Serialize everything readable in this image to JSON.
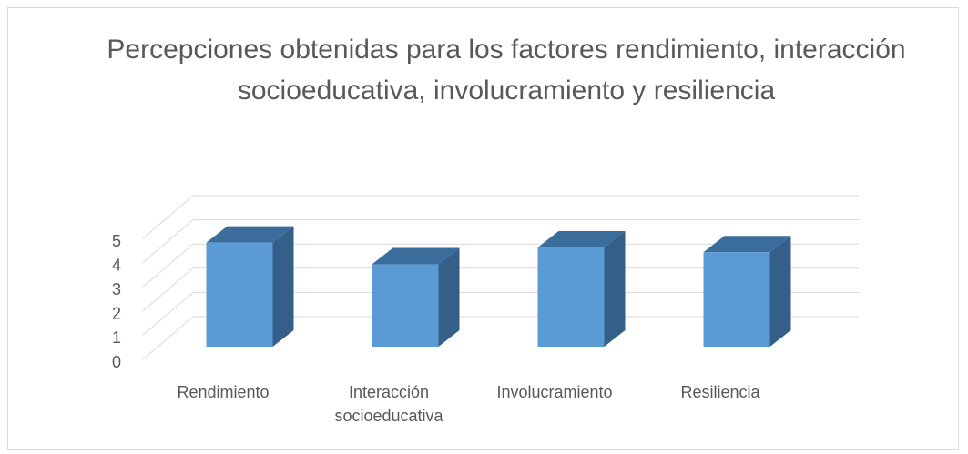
{
  "chart_data": {
    "type": "bar3d",
    "title": "Percepciones obtenidas para los factores rendimiento, interacción socioeducativa, involucramiento y resiliencia",
    "categories": [
      "Rendimiento",
      "Interacción socioeducativa",
      "Involucramiento",
      "Resiliencia"
    ],
    "values": [
      4.3,
      3.4,
      4.1,
      3.9
    ],
    "color": "#5b9bd5",
    "ylim": [
      0,
      5
    ],
    "yticks": [
      0,
      1,
      2,
      3,
      4,
      5
    ],
    "grid": true
  }
}
